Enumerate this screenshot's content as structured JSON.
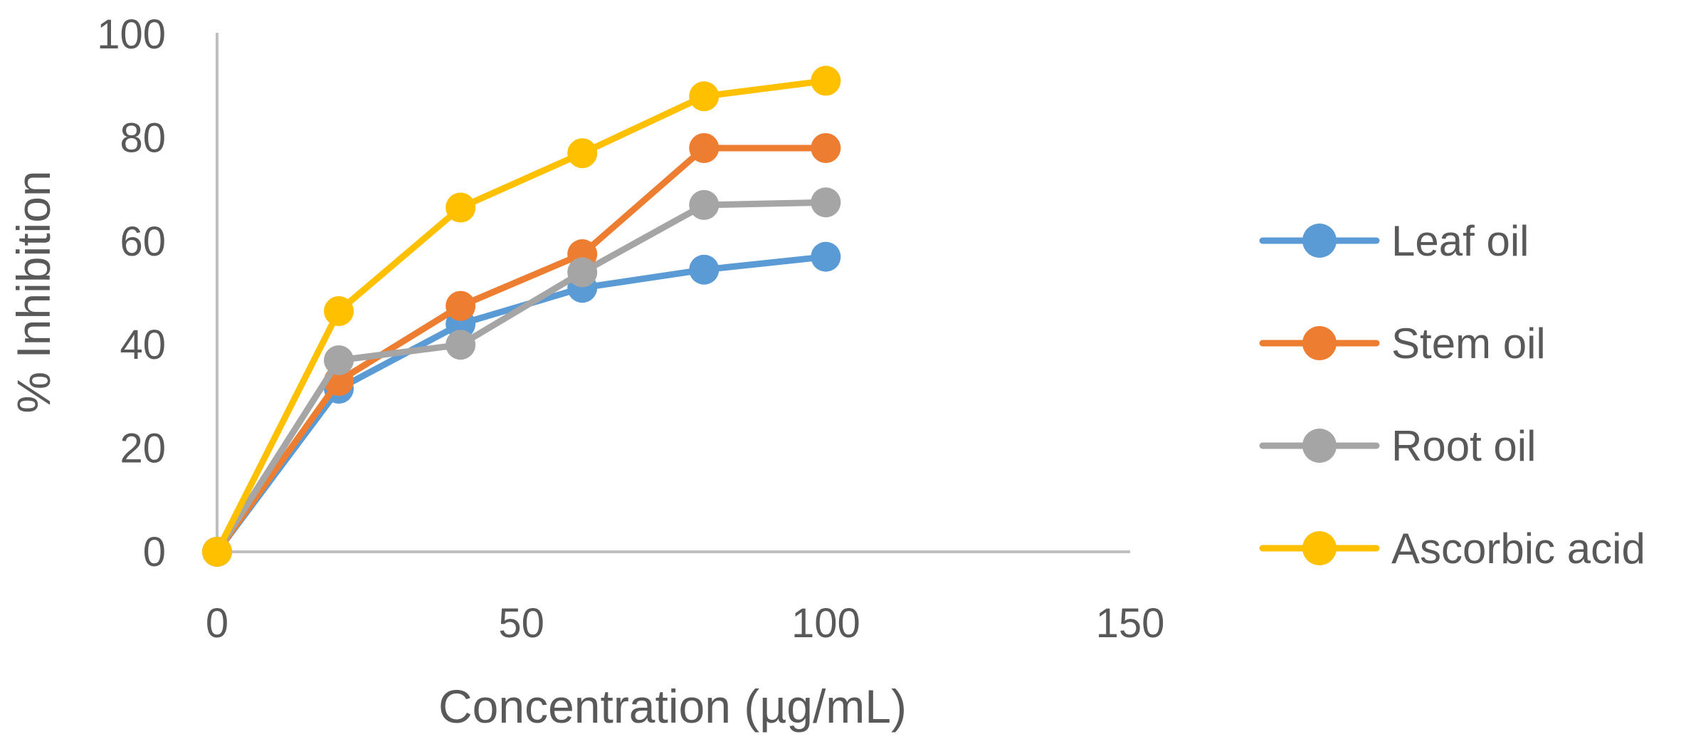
{
  "chart_data": {
    "type": "line",
    "title": "",
    "xlabel": "Concentration (µg/mL)",
    "ylabel": "% Inhibition",
    "xlim": [
      0,
      150
    ],
    "ylim": [
      0,
      100
    ],
    "x_ticks": [
      "0",
      "50",
      "100",
      "150"
    ],
    "y_ticks": [
      "0",
      "20",
      "40",
      "60",
      "80",
      "100"
    ],
    "x_tick_values": [
      0,
      50,
      100,
      150
    ],
    "y_tick_values": [
      0,
      20,
      40,
      60,
      80,
      100
    ],
    "grid": false,
    "legend_position": "right",
    "x": [
      0,
      20,
      40,
      60,
      80,
      100
    ],
    "series": [
      {
        "name": "Leaf oil",
        "color": "#5B9BD5",
        "values": [
          0,
          31.5,
          44,
          51,
          54.5,
          57
        ]
      },
      {
        "name": "Stem oil",
        "color": "#ED7D31",
        "values": [
          0,
          33,
          47.5,
          57.5,
          78,
          78
        ]
      },
      {
        "name": "Root oil",
        "color": "#A5A5A5",
        "values": [
          0,
          37,
          40,
          54,
          67,
          67.5
        ]
      },
      {
        "name": "Ascorbic acid",
        "color": "#FFC000",
        "values": [
          0,
          46.5,
          66.5,
          77,
          88,
          91
        ]
      }
    ]
  }
}
